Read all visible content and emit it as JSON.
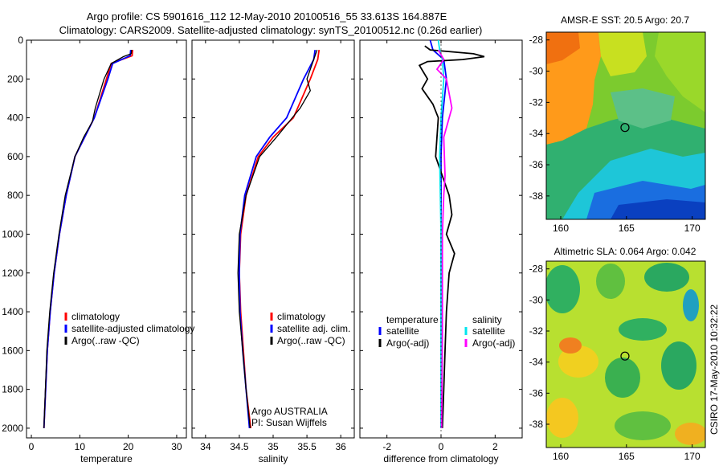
{
  "header": {
    "line1": "Argo profile: CS 5901616_112 12-May-2010 20100516_55 33.613S 164.887E",
    "line2": "Climatology: CARS2009. Satellite-adjusted climatology: synTS_20100512.nc (0.26d earlier)"
  },
  "credit": "CSIRO 17-May-2010 10:32:22",
  "colors": {
    "climatology": "#ff0000",
    "satellite": "#0000ff",
    "argo": "#000000",
    "salinity_satellite": "#00e5ee",
    "salinity_argo": "#ff00ff"
  },
  "chart_data": [
    {
      "type": "line",
      "xlabel": "temperature",
      "xlim": [
        -1,
        32
      ],
      "ylim": [
        2050,
        0
      ],
      "xticks": [
        0,
        10,
        20,
        30
      ],
      "yticks": [
        0,
        200,
        400,
        600,
        800,
        1000,
        1200,
        1400,
        1600,
        1800,
        2000
      ],
      "legend": [
        "climatology",
        "satellite-adjusted climatology",
        "Argo(..raw -QC)"
      ],
      "series": [
        {
          "name": "climatology",
          "color": "#ff0000",
          "x": [
            20.9,
            20.8,
            16.5,
            15.5,
            13.0,
            11.0,
            9.0,
            7.2,
            5.8,
            4.7,
            3.9,
            3.3,
            2.6
          ],
          "y": [
            50,
            80,
            120,
            200,
            400,
            500,
            600,
            800,
            1000,
            1200,
            1400,
            1600,
            2000
          ]
        },
        {
          "name": "satellite-adjusted climatology",
          "color": "#0000ff",
          "x": [
            20.5,
            20.4,
            16.8,
            15.8,
            13.0,
            11.0,
            9.0,
            7.2,
            5.8,
            4.7,
            3.9,
            3.3,
            2.6
          ],
          "y": [
            50,
            80,
            120,
            200,
            400,
            500,
            600,
            800,
            1000,
            1200,
            1400,
            1600,
            2000
          ]
        },
        {
          "name": "Argo(..raw -QC)",
          "color": "#000000",
          "x": [
            20.7,
            20.6,
            19.0,
            16.5,
            15.0,
            13.2,
            12.6,
            10.8,
            9.0,
            7.0,
            5.7,
            4.6,
            3.8,
            3.2,
            2.6
          ],
          "y": [
            50,
            70,
            85,
            120,
            200,
            350,
            420,
            500,
            600,
            800,
            1000,
            1200,
            1400,
            1600,
            2000
          ]
        }
      ]
    },
    {
      "type": "line",
      "xlabel": "salinity",
      "xlim": [
        33.8,
        36.2
      ],
      "ylim": [
        2050,
        0
      ],
      "xticks": [
        34,
        34.5,
        35,
        35.5,
        36
      ],
      "legend": [
        "climatology",
        "satellite adj. clim.",
        "Argo(..raw -QC)"
      ],
      "annotation": [
        "Argo AUSTRALIA",
        "PI: Susan Wijffels"
      ],
      "series": [
        {
          "name": "climatology",
          "color": "#ff0000",
          "x": [
            35.68,
            35.66,
            35.55,
            35.3,
            35.0,
            34.78,
            34.6,
            34.52,
            34.5,
            34.52,
            34.56,
            34.6,
            34.67
          ],
          "y": [
            50,
            100,
            200,
            400,
            500,
            600,
            800,
            1000,
            1200,
            1400,
            1600,
            1800,
            2000
          ]
        },
        {
          "name": "satellite adj. clim.",
          "color": "#0000ff",
          "x": [
            35.62,
            35.6,
            35.45,
            35.2,
            34.95,
            34.75,
            34.58,
            34.51,
            34.5,
            34.51,
            34.55,
            34.6,
            34.65
          ],
          "y": [
            50,
            100,
            200,
            400,
            500,
            600,
            800,
            1000,
            1200,
            1400,
            1600,
            1800,
            2000
          ]
        },
        {
          "name": "Argo(..raw -QC)",
          "color": "#000000",
          "x": [
            35.65,
            35.6,
            35.5,
            35.55,
            35.4,
            35.05,
            34.8,
            34.6,
            34.5,
            34.48,
            34.5,
            34.55,
            34.6,
            34.66
          ],
          "y": [
            50,
            100,
            200,
            260,
            350,
            500,
            600,
            800,
            1000,
            1200,
            1400,
            1600,
            1800,
            2000
          ]
        }
      ]
    },
    {
      "type": "line",
      "xlabel": "difference from climatology",
      "xlim": [
        -3,
        3
      ],
      "ylim": [
        2050,
        0
      ],
      "xticks": [
        -2,
        0,
        2
      ],
      "legend_groups": [
        {
          "title": "temperature",
          "entries": [
            "satellite",
            "Argo(-adj)"
          ]
        },
        {
          "title": "salinity",
          "entries": [
            "satellite",
            "Argo(-adj)"
          ]
        }
      ],
      "series": [
        {
          "name": "satellite",
          "group": "temperature",
          "color": "#0000ff",
          "x": [
            -0.4,
            -0.3,
            0.1,
            0.2,
            0.05,
            0.0,
            0.0,
            0.0,
            0.0,
            0.0
          ],
          "y": [
            0,
            50,
            100,
            200,
            400,
            600,
            1000,
            1400,
            1800,
            2000
          ]
        },
        {
          "name": "Argo(-adj)",
          "group": "temperature",
          "color": "#000000",
          "x": [
            -0.6,
            -0.4,
            0.4,
            1.2,
            1.6,
            0.8,
            -0.5,
            -0.8,
            -0.5,
            -0.7,
            -0.3,
            -0.1,
            -0.2,
            0.3,
            0.4,
            0.2,
            0.5,
            0.3,
            0.2,
            0.15,
            0.1,
            0.05
          ],
          "y": [
            30,
            50,
            60,
            70,
            85,
            100,
            110,
            130,
            200,
            250,
            330,
            400,
            600,
            800,
            900,
            1000,
            1100,
            1200,
            1400,
            1600,
            1800,
            2000
          ]
        },
        {
          "name": "satellite",
          "group": "salinity",
          "color": "#00e5ee",
          "x": [
            -0.1,
            -0.05,
            0.05,
            0.1,
            0.0,
            -0.05,
            0.0,
            0.0,
            0.0
          ],
          "y": [
            0,
            50,
            100,
            200,
            400,
            600,
            1000,
            1500,
            2000
          ]
        },
        {
          "name": "Argo(-adj)",
          "group": "salinity",
          "color": "#ff00ff",
          "x": [
            -0.1,
            0.1,
            -0.15,
            0.2,
            0.4,
            0.1,
            0.15,
            0.1,
            0.05,
            0.05,
            0.02
          ],
          "y": [
            50,
            100,
            150,
            200,
            350,
            500,
            700,
            800,
            1000,
            1500,
            2000
          ]
        }
      ]
    },
    {
      "type": "heatmap",
      "title": "AMSR-E SST: 20.5 Argo: 20.7",
      "xlim": [
        158.9,
        171
      ],
      "ylim": [
        -39.5,
        -27.5
      ],
      "xticks": [
        160,
        165,
        170
      ],
      "yticks": [
        -28,
        -30,
        -32,
        -34,
        -36,
        -38
      ],
      "marker": {
        "x": 164.887,
        "y": -33.613
      }
    },
    {
      "type": "heatmap",
      "title": "Altimetric SLA: 0.064 Argo: 0.042",
      "xlim": [
        158.9,
        171
      ],
      "ylim": [
        -39.5,
        -27.5
      ],
      "xticks": [
        160,
        165,
        170
      ],
      "yticks": [
        -28,
        -30,
        -32,
        -34,
        -36,
        -38
      ],
      "marker": {
        "x": 164.887,
        "y": -33.613
      }
    }
  ]
}
